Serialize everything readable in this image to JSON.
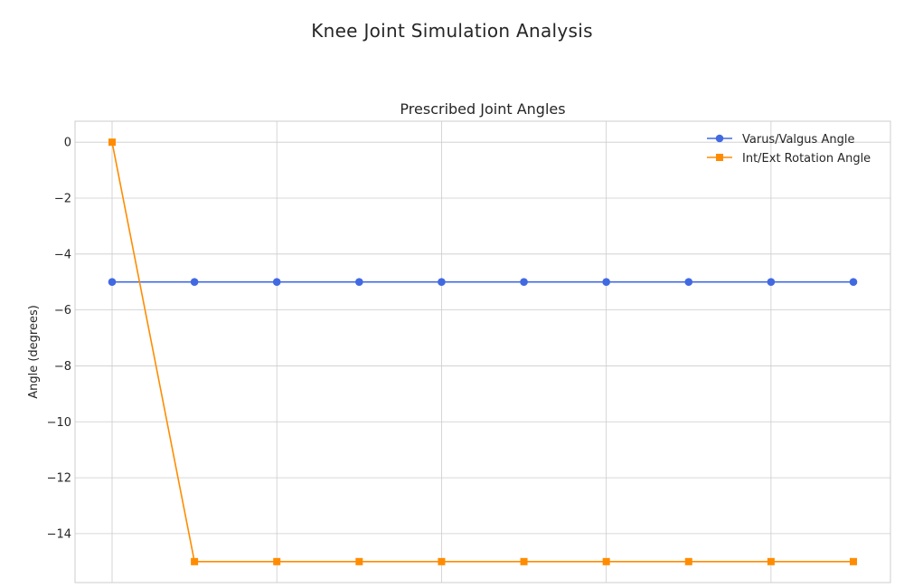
{
  "figure": {
    "suptitle": "Knee Joint Simulation Analysis"
  },
  "chart_data": {
    "type": "line",
    "title": "Prescribed Joint Angles",
    "xlabel": "",
    "ylabel": "Angle (degrees)",
    "x": [
      0,
      1,
      2,
      3,
      4,
      5,
      6,
      7,
      8,
      9
    ],
    "xlim": [
      -0.45,
      9.45
    ],
    "ylim": [
      -15.75,
      0.75
    ],
    "yticks": [
      0,
      -2,
      -4,
      -6,
      -8,
      -10,
      -12,
      -14
    ],
    "ytick_labels": [
      "0",
      "−2",
      "−4",
      "−6",
      "−8",
      "−10",
      "−12",
      "−14"
    ],
    "grid": true,
    "legend_position": "top-right",
    "series": [
      {
        "name": "Varus/Valgus Angle",
        "values": [
          -5,
          -5,
          -5,
          -5,
          -5,
          -5,
          -5,
          -5,
          -5,
          -5
        ],
        "color": "#4169e1",
        "marker": "circle"
      },
      {
        "name": "Int/Ext Rotation Angle",
        "values": [
          0,
          -15,
          -15,
          -15,
          -15,
          -15,
          -15,
          -15,
          -15,
          -15
        ],
        "color": "#ff8c00",
        "marker": "square"
      }
    ]
  }
}
